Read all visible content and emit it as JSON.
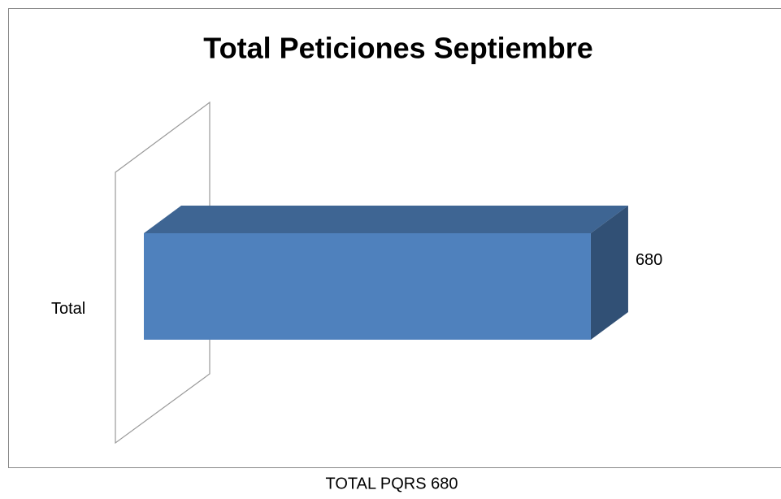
{
  "chart_data": {
    "type": "bar",
    "orientation": "horizontal",
    "title": "Total Peticiones Septiembre",
    "categories": [
      "Total"
    ],
    "values": [
      680
    ],
    "color": "#4f81bd",
    "xlim": [
      0,
      800
    ]
  },
  "caption": "TOTAL PQRS 680"
}
